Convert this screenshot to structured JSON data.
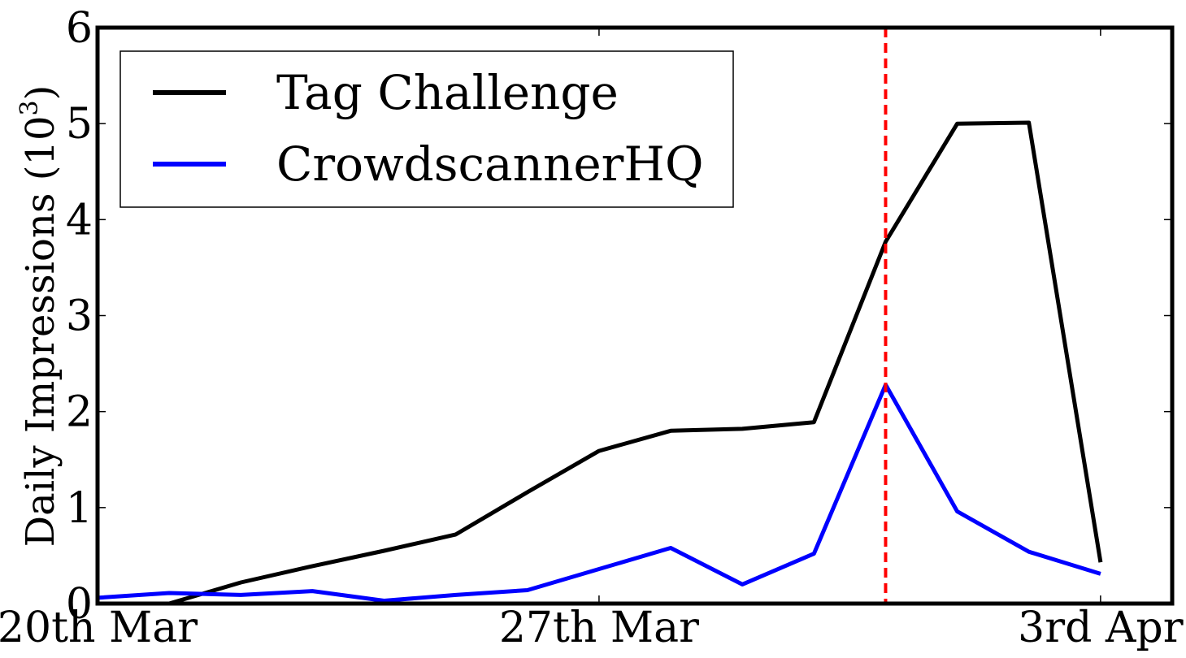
{
  "chart_data": {
    "type": "line",
    "x": [
      "20th Mar",
      "21st Mar",
      "22nd Mar",
      "23rd Mar",
      "24th Mar",
      "25th Mar",
      "26th Mar",
      "27th Mar",
      "28th Mar",
      "29th Mar",
      "30th Mar",
      "31st Mar",
      "1st Apr",
      "2nd Apr",
      "3rd Apr"
    ],
    "x_tick_labels": [
      "20th Mar",
      "27th Mar",
      "3rd Apr"
    ],
    "series": [
      {
        "name": "Tag Challenge",
        "color": "#000000",
        "values": [
          null,
          0.0,
          0.22,
          0.39,
          0.55,
          0.72,
          1.16,
          1.59,
          1.8,
          1.82,
          1.89,
          3.77,
          5.0,
          5.01,
          0.43
        ]
      },
      {
        "name": "CrowdscannerHQ",
        "color": "#0000ff",
        "values": [
          0.06,
          0.11,
          0.09,
          0.13,
          0.03,
          0.09,
          0.14,
          0.36,
          0.58,
          0.2,
          0.52,
          2.28,
          0.96,
          0.54,
          0.31
        ]
      }
    ],
    "marker_line": {
      "x": "31st Mar",
      "color": "#ff0000",
      "style": "dashed"
    },
    "ylabel": "Daily Impressions (10",
    "ylabel_superscript": "3",
    "ylabel_close": ")",
    "ylim": [
      0,
      6
    ],
    "y_ticks": [
      "0",
      "1",
      "2",
      "3",
      "4",
      "5",
      "6"
    ],
    "xlim": [
      "20th Mar",
      "4th Apr"
    ],
    "grid": false,
    "legend_position": "top-left"
  }
}
